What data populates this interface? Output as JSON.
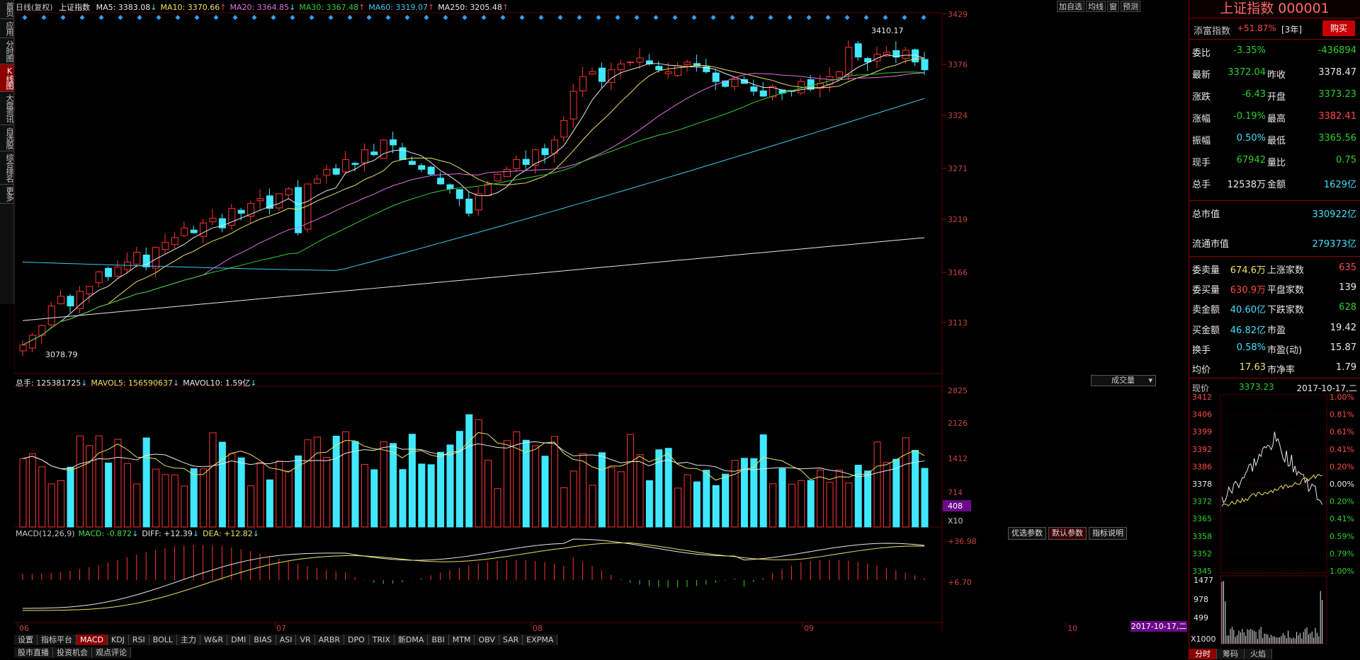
{
  "nav": [
    "首页",
    "应用",
    "分时图",
    "K线图",
    "大盘资讯",
    "自选股",
    "综合排名",
    "更多"
  ],
  "nav_active": 3,
  "kline": {
    "title": "日线(复权)",
    "name": "上证指数",
    "ma": [
      {
        "label": "MA5: 3383.08",
        "arrow": "↓",
        "color": "#e8e8e8"
      },
      {
        "label": "MA10: 3370.66",
        "arrow": "↑",
        "color": "#f0e060"
      },
      {
        "label": "MA20: 3364.85",
        "arrow": "↓",
        "color": "#e070e0"
      },
      {
        "label": "MA30: 3367.48",
        "arrow": "↑",
        "color": "#30d030"
      },
      {
        "label": "MA60: 3319.07",
        "arrow": "↑",
        "color": "#40c8f0"
      },
      {
        "label": "MA250: 3205.48",
        "arrow": "↑",
        "color": "#e8e8e8"
      }
    ],
    "buttons": [
      "加自选",
      "均线",
      "窗",
      "预测"
    ],
    "yaxis": [
      "3429",
      "3376",
      "3324",
      "3271",
      "3219",
      "3166",
      "3113"
    ],
    "high_label": "3410.17",
    "low_label": "3078.79"
  },
  "volume": {
    "legend": [
      {
        "label": "总手: 125381725",
        "arrow": "↓",
        "color": "#e8e8e8"
      },
      {
        "label": "MAVOL5: 156590637",
        "arrow": "↓",
        "color": "#f0e060"
      },
      {
        "label": "MAVOL10: 1.59亿",
        "arrow": "↓",
        "color": "#e8e8e8"
      }
    ],
    "dropdown": "成交量",
    "yaxis": [
      "2825",
      "2126",
      "1412",
      "714"
    ],
    "current": "408",
    "unit": "X10"
  },
  "macd": {
    "legend": [
      {
        "label": "MACD(12,26,9)",
        "arrow": "",
        "color": "#c8c8c8"
      },
      {
        "label": "MACD: -0.872",
        "arrow": "↓",
        "color": "#40e040"
      },
      {
        "label": "DIFF: +12.39",
        "arrow": "↓",
        "color": "#e8e8e8"
      },
      {
        "label": "DEA: +12.82",
        "arrow": "↓",
        "color": "#f0e060"
      }
    ],
    "buttons": [
      "优选参数",
      "默认参数",
      "指标说明"
    ],
    "yaxis": [
      "+36.98",
      "+6.70"
    ]
  },
  "xaxis": [
    {
      "label": "06"
    },
    {
      "label": "07"
    },
    {
      "label": "08"
    },
    {
      "label": "09"
    },
    {
      "label": "10"
    }
  ],
  "date_box": "2017-10-17,二",
  "indicator_tabs": [
    "设置",
    "指标平台",
    "MACD",
    "KDJ",
    "RSI",
    "BOLL",
    "主力",
    "W&R",
    "DMI",
    "BIAS",
    "ASI",
    "VR",
    "ARBR",
    "DPO",
    "TRIX",
    "新DMA",
    "BBI",
    "MTM",
    "OBV",
    "SAR",
    "EXPMA"
  ],
  "indicator_active": "MACD",
  "bottom_tabs": [
    "股市直播",
    "投资机会",
    "观点评论"
  ],
  "right": {
    "title": "上证指数 000001",
    "sub_name": "添富指数",
    "sub_pct": "+51.87%",
    "sub_period": "[3年]",
    "buy": "购买",
    "rows1": [
      {
        "k": "委比",
        "v": "-3.35%",
        "vc": "green",
        "k2": "",
        "v2": "-436894",
        "v2c": "green"
      },
      {
        "k": "最新",
        "v": "3372.04",
        "vc": "green",
        "k2": "昨收",
        "v2": "3378.47",
        "v2c": "white"
      },
      {
        "k": "涨跌",
        "v": "-6.43",
        "vc": "green",
        "k2": "开盘",
        "v2": "3373.23",
        "v2c": "green"
      },
      {
        "k": "涨幅",
        "v": "-0.19%",
        "vc": "green",
        "k2": "最高",
        "v2": "3382.41",
        "v2c": "red"
      },
      {
        "k": "振幅",
        "v": "0.50%",
        "vc": "cyan",
        "k2": "最低",
        "v2": "3365.56",
        "v2c": "green"
      },
      {
        "k": "现手",
        "v": "67942",
        "vc": "green",
        "k2": "量比",
        "v2": "0.75",
        "v2c": "green"
      },
      {
        "k": "总手",
        "v": "12538万",
        "vc": "white",
        "k2": "金额",
        "v2": "1629亿",
        "v2c": "cyan"
      }
    ],
    "mcap": {
      "k": "总市值",
      "v": "330922亿"
    },
    "fmcap": {
      "k": "流通市值",
      "v": "279373亿"
    },
    "rows2": [
      {
        "k": "委卖量",
        "v": "674.6万",
        "vc": "yellow",
        "k2": "上涨家数",
        "v2": "635",
        "v2c": "red"
      },
      {
        "k": "委买量",
        "v": "630.9万",
        "vc": "red",
        "k2": "平盘家数",
        "v2": "139",
        "v2c": "white"
      },
      {
        "k": "卖金额",
        "v": "40.60亿",
        "vc": "cyan",
        "k2": "下跌家数",
        "v2": "628",
        "v2c": "green"
      },
      {
        "k": "买金额",
        "v": "46.82亿",
        "vc": "cyan",
        "k2": "市盈",
        "v2": "19.42",
        "v2c": "white"
      },
      {
        "k": "换手",
        "v": "0.58%",
        "vc": "cyan",
        "k2": "市盈(动)",
        "v2": "15.87",
        "v2c": "white"
      },
      {
        "k": "均价",
        "v": "17.63",
        "vc": "yellow",
        "k2": "市净率",
        "v2": "1.79",
        "v2c": "white"
      }
    ],
    "mini": {
      "label": "现价",
      "price": "3373.23",
      "date": "2017-10-17,二",
      "left_axis": [
        "3412",
        "3406",
        "3399",
        "3392",
        "3386",
        "3378",
        "3372",
        "3365",
        "3358",
        "3352",
        "3345"
      ],
      "right_axis": [
        "1.00%",
        "0.81%",
        "0.61%",
        "0.41%",
        "0.20%",
        "0.00%",
        "0.20%",
        "0.41%",
        "0.59%",
        "0.79%",
        "1.00%"
      ],
      "vol_axis": [
        "1477",
        "978",
        "499"
      ],
      "vol_unit": "X1000"
    },
    "tabs": [
      "分时",
      "筹码",
      "火焰"
    ]
  }
}
